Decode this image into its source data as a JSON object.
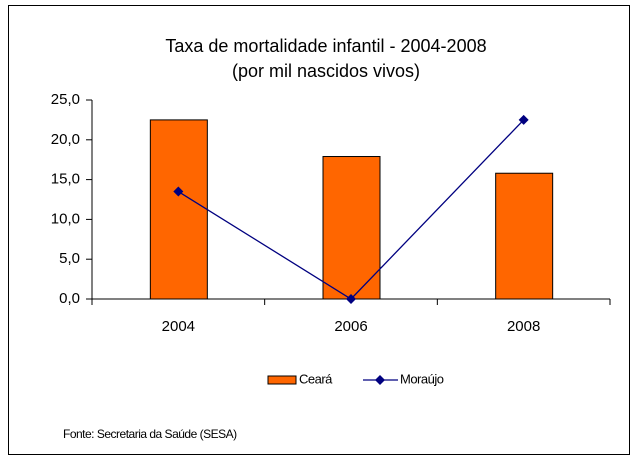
{
  "chart_data": {
    "type": "bar",
    "title": "Taxa de mortalidade infantil - 2004-2008",
    "subtitle": "(por mil nascidos vivos)",
    "categories": [
      "2004",
      "2006",
      "2008"
    ],
    "series": [
      {
        "name": "Ceará",
        "type": "bar",
        "color": "#ff6600",
        "values": [
          22.5,
          17.9,
          15.8
        ]
      },
      {
        "name": "Moraújo",
        "type": "line",
        "color": "#000080",
        "values": [
          13.5,
          0,
          22.5
        ]
      }
    ],
    "ylim": [
      0,
      25
    ],
    "yticks": [
      {
        "value": 0,
        "label": "0,0"
      },
      {
        "value": 5,
        "label": "5,0"
      },
      {
        "value": 10,
        "label": "10,0"
      },
      {
        "value": 15,
        "label": "15,0"
      },
      {
        "value": 20,
        "label": "20,0"
      },
      {
        "value": 25,
        "label": "25,0"
      }
    ],
    "grid": false,
    "legend": "bottom",
    "source": "Fonte: Secretaria da Saúde (SESA)"
  }
}
